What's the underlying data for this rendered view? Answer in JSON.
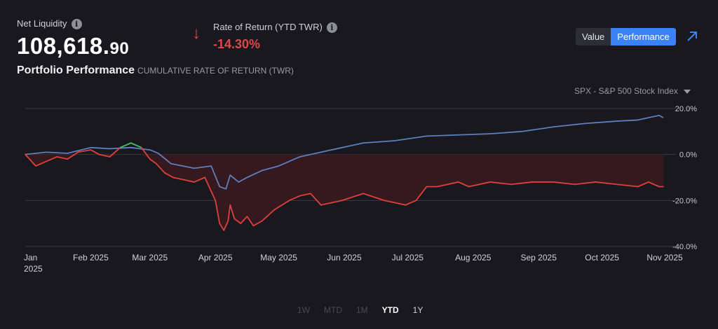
{
  "header": {
    "net_liquidity_label": "Net Liquidity",
    "net_liquidity_main": "108,618.",
    "net_liquidity_cents": "90",
    "info_glyph": "i",
    "portfolio_title": "Portfolio Performance",
    "portfolio_subtitle": "CUMULATIVE RATE OF RETURN (TWR)",
    "ror_label": "Rate of Return (YTD TWR)",
    "ror_value": "-14.30%",
    "down_arrow_glyph": "↓"
  },
  "toggle": {
    "value_label": "Value",
    "performance_label": "Performance",
    "active": "Performance"
  },
  "benchmark": {
    "label": "SPX - S&P 500 Stock Index"
  },
  "ranges": [
    {
      "label": "1W",
      "state": "dim"
    },
    {
      "label": "MTD",
      "state": "dim"
    },
    {
      "label": "1M",
      "state": "dim"
    },
    {
      "label": "YTD",
      "state": "active"
    },
    {
      "label": "1Y",
      "state": "normal"
    }
  ],
  "colors": {
    "portfolio": "#e0403c",
    "portfolio_above": "#46c060",
    "benchmark": "#5b7fbf",
    "fill": "#3a1a1e",
    "grid": "#3a3a44",
    "accent": "#3b82f6"
  },
  "icons": {
    "info": "info-icon",
    "arrow": "arrow-down-icon",
    "expand": "expand-arrow-icon",
    "dropdown": "caret-down-icon"
  },
  "chart_data": {
    "type": "line",
    "yticks": [
      "20.0%",
      "0.0%",
      "-20.0%",
      "-40.0%"
    ],
    "ylim": [
      -40,
      20
    ],
    "xlabels": [
      "Jan\n2025",
      "Feb 2025",
      "Mar 2025",
      "Apr 2025",
      "May 2025",
      "Jun 2025",
      "Jul 2025",
      "Aug 2025",
      "Sep 2025",
      "Oct 2025",
      "Nov 2025"
    ],
    "x_range_days": [
      0,
      304
    ],
    "series": [
      {
        "name": "SPX - S&P 500 Stock Index",
        "x": [
          0,
          10,
          20,
          31,
          40,
          50,
          59,
          63,
          69,
          80,
          88,
          92,
          95,
          97,
          101,
          105,
          112,
          120,
          130,
          140,
          150,
          160,
          175,
          190,
          205,
          220,
          235,
          250,
          265,
          280,
          290,
          300,
          302
        ],
        "values": [
          0,
          1,
          0.5,
          3,
          2.5,
          3,
          2,
          0.5,
          -4,
          -6,
          -5,
          -14,
          -15,
          -9,
          -12,
          -10,
          -7,
          -5,
          -1,
          1,
          3,
          5,
          6,
          8,
          8.5,
          9,
          10,
          12,
          13.5,
          14.5,
          15,
          17,
          16
        ]
      },
      {
        "name": "Portfolio",
        "x": [
          0,
          5,
          10,
          15,
          20,
          25,
          31,
          35,
          40,
          45,
          50,
          55,
          59,
          62,
          66,
          70,
          75,
          80,
          85,
          90,
          92,
          94,
          96,
          97,
          99,
          102,
          105,
          108,
          112,
          118,
          125,
          130,
          135,
          140,
          145,
          150,
          160,
          170,
          180,
          185,
          190,
          195,
          200,
          205,
          210,
          220,
          230,
          240,
          250,
          260,
          270,
          280,
          290,
          295,
          300,
          302
        ],
        "values": [
          0,
          -5,
          -3,
          -1,
          -2,
          1,
          2,
          0,
          -1,
          3,
          5,
          3,
          -2,
          -4,
          -8,
          -10,
          -11,
          -12,
          -10,
          -20,
          -30,
          -33,
          -29,
          -22,
          -28,
          -30,
          -27,
          -31,
          -29,
          -24,
          -20,
          -18,
          -17,
          -22,
          -21,
          -20,
          -17,
          -20,
          -22,
          -20,
          -14,
          -14,
          -13,
          -12,
          -14,
          -12,
          -13,
          -12,
          -12,
          -13,
          -12,
          -13,
          -14,
          -12,
          -14,
          -14
        ]
      }
    ]
  }
}
